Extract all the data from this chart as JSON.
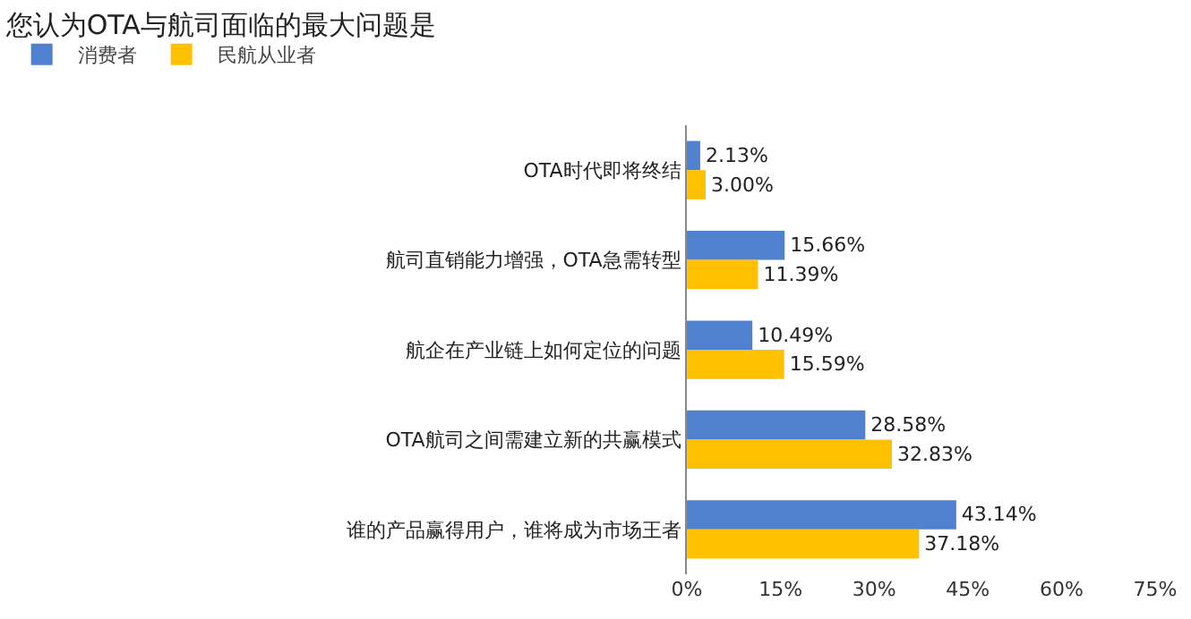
{
  "chart_data": {
    "type": "bar",
    "orientation": "horizontal",
    "title": "您认为OTA与航司面临的最大问题是",
    "categories": [
      "OTA时代即将终结",
      "航司直销能力增强，OTA急需转型",
      "航企在产业链上如何定位的问题",
      "OTA航司之间需建立新的共赢模式",
      "谁的产品赢得用户，谁将成为市场王者"
    ],
    "series": [
      {
        "name": "消费者",
        "color": "#4f81cf",
        "values": [
          2.13,
          15.66,
          10.49,
          28.58,
          43.14
        ],
        "value_labels": [
          "2.13%",
          "15.66%",
          "10.49%",
          "28.58%",
          "43.14%"
        ]
      },
      {
        "name": "民航从业者",
        "color": "#ffc000",
        "values": [
          3.0,
          11.39,
          15.59,
          32.83,
          37.18
        ],
        "value_labels": [
          "3.00%",
          "11.39%",
          "15.59%",
          "32.83%",
          "37.18%"
        ]
      }
    ],
    "xlim": [
      0,
      75
    ],
    "xticks": [
      {
        "value": 0,
        "label": "0%"
      },
      {
        "value": 15,
        "label": "15%"
      },
      {
        "value": 30,
        "label": "30%"
      },
      {
        "value": 45,
        "label": "45%"
      },
      {
        "value": 60,
        "label": "60%"
      },
      {
        "value": 75,
        "label": "75%"
      }
    ],
    "grid": false,
    "legend": "top left"
  }
}
